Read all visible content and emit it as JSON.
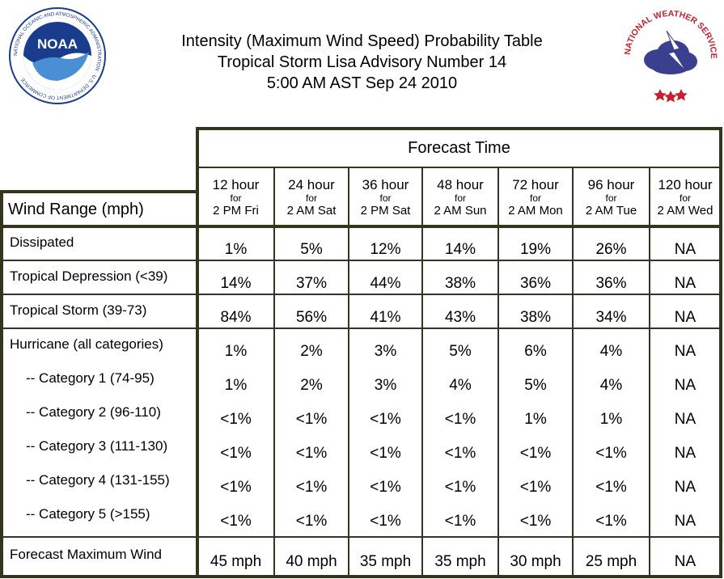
{
  "title": {
    "line1": "Intensity (Maximum Wind Speed) Probability Table",
    "line2": "Tropical Storm Lisa Advisory Number 14",
    "line3": "5:00 AM AST Sep 24 2010"
  },
  "logos": {
    "noaa": {
      "text": "NOAA",
      "ring_text": "NATIONAL OCEANIC AND ATMOSPHERIC ADMINISTRATION · U.S. DEPARTMENT OF COMMERCE",
      "color": "#1a3c8c"
    },
    "nws": {
      "ring_text": "NATIONAL WEATHER SERVICE",
      "color": "#c8202f"
    }
  },
  "table": {
    "forecast_time_label": "Forecast Time",
    "wind_range_label": "Wind Range (mph)",
    "columns": [
      {
        "hour": "12 hour",
        "for": "for",
        "time": "2 PM Fri"
      },
      {
        "hour": "24 hour",
        "for": "for",
        "time": "2 AM Sat"
      },
      {
        "hour": "36 hour",
        "for": "for",
        "time": "2 PM Sat"
      },
      {
        "hour": "48 hour",
        "for": "for",
        "time": "2 AM Sun"
      },
      {
        "hour": "72 hour",
        "for": "for",
        "time": "2 AM Mon"
      },
      {
        "hour": "96 hour",
        "for": "for",
        "time": "2 AM Tue"
      },
      {
        "hour": "120 hour",
        "for": "for",
        "time": "2 AM Wed"
      }
    ],
    "rows": [
      {
        "label": "Dissipated",
        "values": [
          "1%",
          "5%",
          "12%",
          "14%",
          "19%",
          "26%",
          "NA"
        ]
      },
      {
        "label": "Tropical Depression (<39)",
        "values": [
          "14%",
          "37%",
          "44%",
          "38%",
          "36%",
          "36%",
          "NA"
        ]
      },
      {
        "label": "Tropical Storm (39-73)",
        "values": [
          "84%",
          "56%",
          "41%",
          "43%",
          "38%",
          "34%",
          "NA"
        ]
      },
      {
        "label": "Hurricane (all categories)",
        "values": [
          "1%",
          "2%",
          "3%",
          "5%",
          "6%",
          "4%",
          "NA"
        ]
      },
      {
        "label": "-- Category 1 (74-95)",
        "values": [
          "1%",
          "2%",
          "3%",
          "4%",
          "5%",
          "4%",
          "NA"
        ]
      },
      {
        "label": "-- Category 2 (96-110)",
        "values": [
          "<1%",
          "<1%",
          "<1%",
          "<1%",
          "1%",
          "1%",
          "NA"
        ]
      },
      {
        "label": "-- Category 3 (111-130)",
        "values": [
          "<1%",
          "<1%",
          "<1%",
          "<1%",
          "<1%",
          "<1%",
          "NA"
        ]
      },
      {
        "label": "-- Category 4 (131-155)",
        "values": [
          "<1%",
          "<1%",
          "<1%",
          "<1%",
          "<1%",
          "<1%",
          "NA"
        ]
      },
      {
        "label": "-- Category 5 (>155)",
        "values": [
          "<1%",
          "<1%",
          "<1%",
          "<1%",
          "<1%",
          "<1%",
          "NA"
        ]
      }
    ],
    "max_wind": {
      "label": "Forecast Maximum Wind",
      "values": [
        "45 mph",
        "40 mph",
        "35 mph",
        "35 mph",
        "30 mph",
        "25 mph",
        "NA"
      ]
    }
  },
  "colors": {
    "grid": "#35351d"
  }
}
